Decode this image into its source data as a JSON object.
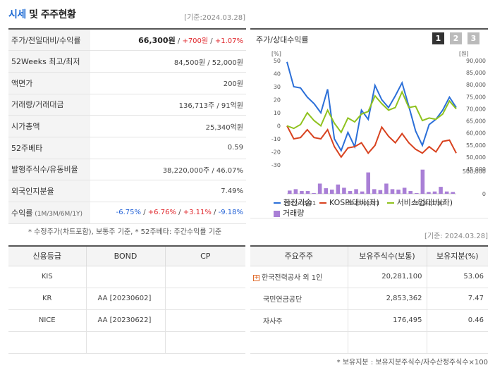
{
  "header": {
    "title_blue": "시세",
    "title_rest": " 및 주주현황",
    "ref_date": "[기준:2024.03.28]"
  },
  "quote": {
    "rows": [
      {
        "label": "주가/전일대비/수익률",
        "price": "66,300원",
        "sep1": " / ",
        "change": "+700원",
        "sep2": " / ",
        "rate": "+1.07%"
      },
      {
        "label": "52Weeks 최고/최저",
        "value": "84,500원 / 52,000원"
      },
      {
        "label": "액면가",
        "value": "200원"
      },
      {
        "label": "거래량/거래대금",
        "value": "136,713주 / 91억원"
      },
      {
        "label": "시가총액",
        "value": "25,340억원"
      },
      {
        "label": "52주베타",
        "value": "0.59"
      },
      {
        "label": "발행주식수/유동비율",
        "value": "38,220,000주 / 46.07%"
      },
      {
        "label": "외국인지분율",
        "value": "7.49%"
      },
      {
        "label": "수익률",
        "label_small": " (1M/3M/6M/1Y)",
        "r1": "-6.75%",
        "r2": "+6.76%",
        "r3": "+3.11%",
        "r4": "-9.18%",
        "sep": "/"
      }
    ],
    "footnote": "* 수정주가(차트포함), 보통주 기준, * 52주베타: 주간수익률 기준"
  },
  "chart": {
    "title": "주가/상대수익률",
    "pages": [
      "1",
      "2",
      "3"
    ],
    "left_unit": "[%]",
    "right_unit": "[원]",
    "legend": {
      "s1": "한전기술",
      "s2": "KOSPI대비(좌)",
      "s3": "서비스업대비(좌)",
      "s4": "거래량"
    },
    "colors": {
      "s1": "#2b6fd8",
      "s2": "#d8421f",
      "s3": "#8fc21e",
      "vol": "#a97fd6"
    }
  },
  "chart_data": {
    "type": "line",
    "x_labels": [
      "2022/03/31",
      "2023/01/31",
      "2023/11/30"
    ],
    "left_ticks": [
      "50",
      "40",
      "30",
      "20",
      "10",
      "0",
      "-10",
      "-20",
      "-30"
    ],
    "right_ticks": [
      "90,000",
      "85,000",
      "80,000",
      "75,000",
      "70,000",
      "65,000",
      "60,000",
      "55,000",
      "50,000",
      "45,000"
    ],
    "vol_ticks": [
      "500,000",
      "0"
    ],
    "ylim_left": [
      -30,
      50
    ],
    "ylim_vol": [
      0,
      500000
    ],
    "series": [
      {
        "name": "한전기술",
        "values": [
          49,
          30,
          29,
          22,
          17,
          10,
          28,
          -10,
          -19,
          -5,
          -16,
          12,
          5,
          31,
          20,
          14,
          23,
          33,
          15,
          -4,
          -15,
          1,
          5,
          12,
          22,
          14
        ]
      },
      {
        "name": "KOSPI대비(좌)",
        "values": [
          0,
          -10,
          -9,
          -3,
          -9,
          -10,
          -3,
          -16,
          -24,
          -17,
          -16,
          -13,
          -21,
          -15,
          -1,
          -8,
          -13,
          -6,
          -13,
          -18,
          -21,
          -16,
          -20,
          -12,
          -11,
          -21
        ]
      },
      {
        "name": "서비스업대비(좌)",
        "values": [
          0,
          -2,
          1,
          10,
          4,
          0,
          12,
          2,
          -5,
          6,
          3,
          9,
          11,
          23,
          17,
          12,
          14,
          26,
          14,
          15,
          4,
          6,
          5,
          9,
          19,
          13
        ]
      },
      {
        "name": "거래량",
        "values": [
          70000,
          100000,
          60000,
          60000,
          0,
          220000,
          120000,
          90000,
          200000,
          130000,
          60000,
          100000,
          50000,
          460000,
          100000,
          80000,
          220000,
          100000,
          90000,
          130000,
          60000,
          0,
          520000,
          40000,
          50000,
          150000,
          50000,
          40000
        ]
      }
    ]
  },
  "credit": {
    "headers": [
      "신용등급",
      "BOND",
      "CP"
    ],
    "rows": [
      {
        "agency": "KIS",
        "bond": "",
        "cp": ""
      },
      {
        "agency": "KR",
        "bond": "AA  [20230602]",
        "cp": ""
      },
      {
        "agency": "NICE",
        "bond": "AA  [20230622]",
        "cp": ""
      },
      {
        "agency": "",
        "bond": "",
        "cp": ""
      }
    ]
  },
  "holders": {
    "ref_date": "[기준: 2024.03.28]",
    "headers": [
      "주요주주",
      "보유주식수(보통)",
      "보유지분(%)"
    ],
    "rows": [
      {
        "name": "한국전력공사 외 1인",
        "shares": "20,281,100",
        "pct": "53.06",
        "expand": "+"
      },
      {
        "name": "국민연금공단",
        "shares": "2,853,362",
        "pct": "7.47"
      },
      {
        "name": "자사주",
        "shares": "176,495",
        "pct": "0.46"
      },
      {
        "name": "",
        "shares": "",
        "pct": ""
      }
    ],
    "footnote": "* 보유지분 : 보유지분주식수/자수산정주식수×100"
  }
}
